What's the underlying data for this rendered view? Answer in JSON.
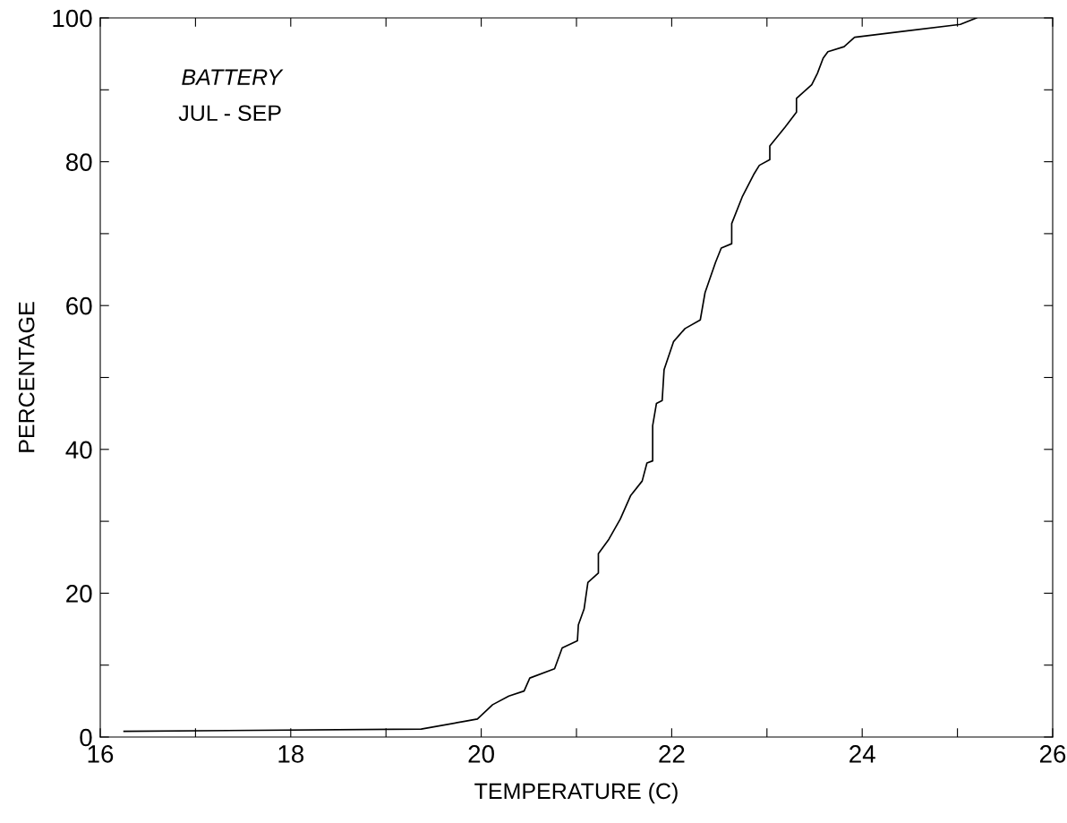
{
  "chart_data": {
    "type": "line",
    "xlabel": "TEMPERATURE (C)",
    "ylabel": "PERCENTAGE",
    "annotations": [
      "BATTERY",
      "JUL - SEP"
    ],
    "x": [
      16.25,
      19.37,
      19.83,
      19.96,
      20.12,
      20.29,
      20.45,
      20.51,
      20.77,
      20.85,
      21.01,
      21.02,
      21.08,
      21.12,
      21.23,
      21.23,
      21.34,
      21.46,
      21.57,
      21.69,
      21.74,
      21.8,
      21.8,
      21.84,
      21.9,
      21.92,
      22.02,
      22.14,
      22.3,
      22.35,
      22.46,
      22.52,
      22.63,
      22.63,
      22.74,
      22.86,
      22.92,
      23.03,
      23.03,
      23.19,
      23.31,
      23.31,
      23.47,
      23.53,
      23.59,
      23.64,
      23.81,
      23.92,
      25.03,
      25.2
    ],
    "series": [
      {
        "color": "#000000",
        "values": [
          0.8,
          1.1,
          2.2,
          2.5,
          4.5,
          5.7,
          6.4,
          8.2,
          9.5,
          12.4,
          13.4,
          15.6,
          17.8,
          21.5,
          22.8,
          25.5,
          27.5,
          30.3,
          33.6,
          35.6,
          38.1,
          38.4,
          43.3,
          46.4,
          46.8,
          51.1,
          55.0,
          56.8,
          58.0,
          61.8,
          66.0,
          68.0,
          68.6,
          71.4,
          75.1,
          78.2,
          79.5,
          80.3,
          82.2,
          84.8,
          86.9,
          88.8,
          90.7,
          92.3,
          94.4,
          95.3,
          96.0,
          97.3,
          99.1,
          100
        ]
      }
    ],
    "xlim": [
      16,
      26
    ],
    "ylim": [
      0,
      100
    ],
    "xticks": [
      16,
      {
        "value": 17,
        "label": null
      },
      18,
      {
        "value": 19,
        "label": null
      },
      20,
      {
        "value": 21,
        "label": null
      },
      22,
      {
        "value": 23,
        "label": null
      },
      24,
      {
        "value": 25,
        "label": null
      },
      26
    ],
    "yticks": [
      0,
      {
        "value": 10,
        "label": null
      },
      20,
      {
        "value": 30,
        "label": null
      },
      40,
      {
        "value": 50,
        "label": null
      },
      60,
      {
        "value": 70,
        "label": null
      },
      80,
      {
        "value": 90,
        "label": null
      },
      100
    ],
    "grid": false,
    "legend": false,
    "marker": "none",
    "line_style": "solid"
  }
}
